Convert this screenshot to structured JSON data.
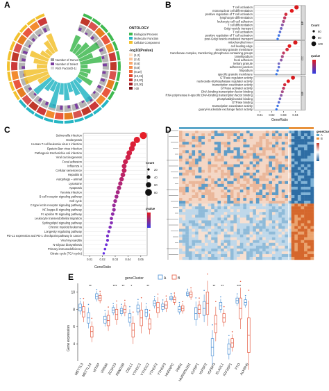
{
  "panels": {
    "A": "A",
    "B": "B",
    "C": "C",
    "D": "D",
    "E": "E"
  },
  "panelA": {
    "legend_title": "ONTOLOGY",
    "ontology": [
      {
        "label": "Biological Process",
        "color": "#3fb950"
      },
      {
        "label": "Molecular Function",
        "color": "#26b6c4"
      },
      {
        "label": "Cellular Component",
        "color": "#f2c12e"
      }
    ],
    "size_legend": [
      "Number of Genes",
      "Number of Select",
      "Rich Factor(0-1)"
    ],
    "pvalue_title": "-log10(Pvalue)",
    "pvalue_bins": [
      "(1,2]",
      "(2,4]",
      "(4,6]",
      "(6,8]",
      "(8,10]",
      "(10,15]",
      "(15,20]",
      "(20,30]",
      ">30"
    ]
  },
  "panelB": {
    "xlabel": "GeneRatio",
    "xticks": [
      "0.01",
      "0.02",
      "0.03",
      "0.04"
    ],
    "facets": [
      "BP",
      "CC",
      "MF"
    ],
    "terms": [
      "T cell activation",
      "mononuclear cell differentiation",
      "positive regulation of T cell activation",
      "lymphocyte differentiation",
      "leukocyte cell-cell adhesion",
      "T cell differentiation",
      "Golgi vesicle transport",
      "T cell activation",
      "positive regulation of T cell activation",
      "post-Golgi vesicle-mediated transport",
      "mitochondrial inner",
      "cell leading edge",
      "secretory granule membrane",
      "transferase complex, transferring phosphorus-containing groups",
      "lamellipodium",
      "focal adhesion",
      "tertiary granule",
      "adherens junction",
      "filopodium",
      "specific granule membrane",
      "GTPase regulator activity",
      "nucleoside-triphosphatase regulator activity",
      "transcription coactivator activity",
      "GTPase activator activity",
      "DNA-binding transcription factor binding",
      "RNA polymerase II-specific DNA-binding transcription factor binding",
      "phosphatidylinositol binding",
      "GTPase binding",
      "transcription coactivator activity",
      "guanyl-nucleotide exchange factor activity"
    ],
    "count_title": "Count",
    "count_values": [
      "60",
      "80",
      "100"
    ],
    "padj_title": "qvalue"
  },
  "panelC": {
    "xlabel": "GeneRatio",
    "xticks": [
      "0.01",
      "0.02",
      "0.03",
      "0.04",
      "0.05"
    ],
    "terms": [
      "Salmonella infection",
      "Endocytosis",
      "Human T-cell leukemia virus 1 infection",
      "Epstein-Barr virus infection",
      "Pathogenic Escherichia coli infection",
      "Viral carcinogenesis",
      "Focal adhesion",
      "Influenza A",
      "Cellular senescence",
      "Hepatitis B",
      "Autophagy – animal",
      "Lysosome",
      "Apoptosis",
      "Yersinia infection",
      "B cell receptor signaling pathway",
      "Cell cycle",
      "C-type lectin receptor signaling pathway",
      "NF-kappa B signaling pathway",
      "Fc epsilon RI signaling pathway",
      "Leukocyte transendothelial migration",
      "Sphingolipid signaling pathway",
      "Chronic myeloid leukemia",
      "Longevity regulating pathway",
      "PD-L1 expression and PD-1 checkpoint pathway in cancer",
      "Viral myocarditis",
      "N-Glycan biosynthesis",
      "Primary immunodeficiency",
      "Citrate cycle (TCA cycle)"
    ],
    "count_title": "Count",
    "count_values": [
      "20",
      "40",
      "60",
      "80"
    ],
    "padj_title": "pvalue"
  },
  "panelD": {
    "legend_title": "geneCluster",
    "legend_items": [
      "A",
      "B"
    ]
  },
  "panelE": {
    "legend_title": "geneCluster",
    "legend_items": [
      "A",
      "B"
    ],
    "ylabel": "Gene expression",
    "yticks": [
      "4",
      "6",
      "8",
      "10"
    ],
    "genes": [
      "METTL3",
      "METTL14",
      "WTAP",
      "VIRMA",
      "ZC3H13",
      "RBM15B",
      "CBLL1",
      "YTHDC1",
      "YTHDC2",
      "YTHDF2",
      "YTHDF3",
      "HNRNPC",
      "FMR1",
      "HNRNPA2B1",
      "IGFBP1",
      "IGFBP2",
      "IGFBP3",
      "ELAVL1",
      "IGF2BP1",
      "FTO",
      "ALKBH5"
    ],
    "sig": [
      "",
      "**",
      "",
      "",
      "***",
      "**",
      "*",
      "",
      "**",
      "",
      "",
      "",
      "",
      "",
      "",
      "",
      "**",
      "**",
      "",
      "***",
      ""
    ],
    "groupA_color": "#4a8fd4",
    "groupB_color": "#e4573d"
  }
}
